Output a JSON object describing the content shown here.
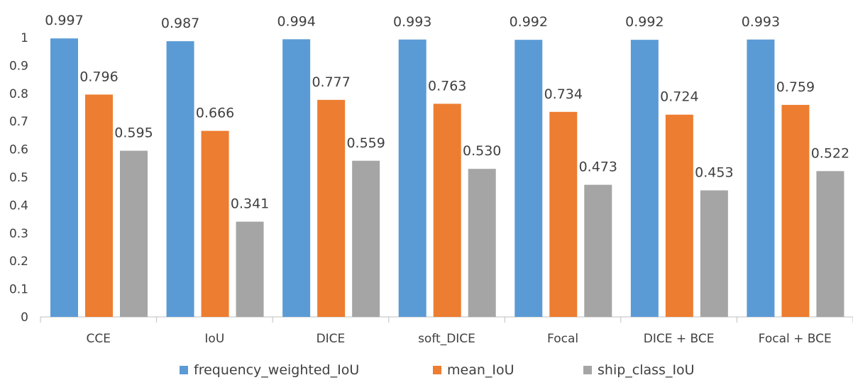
{
  "chart_data": {
    "type": "bar",
    "categories": [
      "CCE",
      "IoU",
      "DICE",
      "soft_DICE",
      "Focal",
      "DICE + BCE",
      "Focal + BCE"
    ],
    "series": [
      {
        "name": "frequency_weighted_IoU",
        "values": [
          0.997,
          0.987,
          0.994,
          0.993,
          0.992,
          0.992,
          0.993
        ],
        "labels": [
          "0.997",
          "0.987",
          "0.994",
          "0.993",
          "0.992",
          "0.992",
          "0.993"
        ],
        "color": "#5B9BD5"
      },
      {
        "name": "mean_IoU",
        "values": [
          0.796,
          0.666,
          0.777,
          0.763,
          0.734,
          0.724,
          0.759
        ],
        "labels": [
          "0.796",
          "0.666",
          "0.777",
          "0.763",
          "0.734",
          "0.724",
          "0.759"
        ],
        "color": "#ED7D31"
      },
      {
        "name": "ship_class_IoU",
        "values": [
          0.595,
          0.341,
          0.559,
          0.53,
          0.473,
          0.453,
          0.522
        ],
        "labels": [
          "0.595",
          "0.341",
          "0.559",
          "0.530",
          "0.473",
          "0.453",
          "0.522"
        ],
        "color": "#A5A5A5"
      }
    ],
    "yticks": [
      "0",
      "0.1",
      "0.2",
      "0.3",
      "0.4",
      "0.5",
      "0.6",
      "0.7",
      "0.8",
      "0.9",
      "1"
    ],
    "ylim": [
      0,
      1
    ],
    "grid": false,
    "legend": "bottom",
    "title": "",
    "xlabel": "",
    "ylabel": ""
  }
}
